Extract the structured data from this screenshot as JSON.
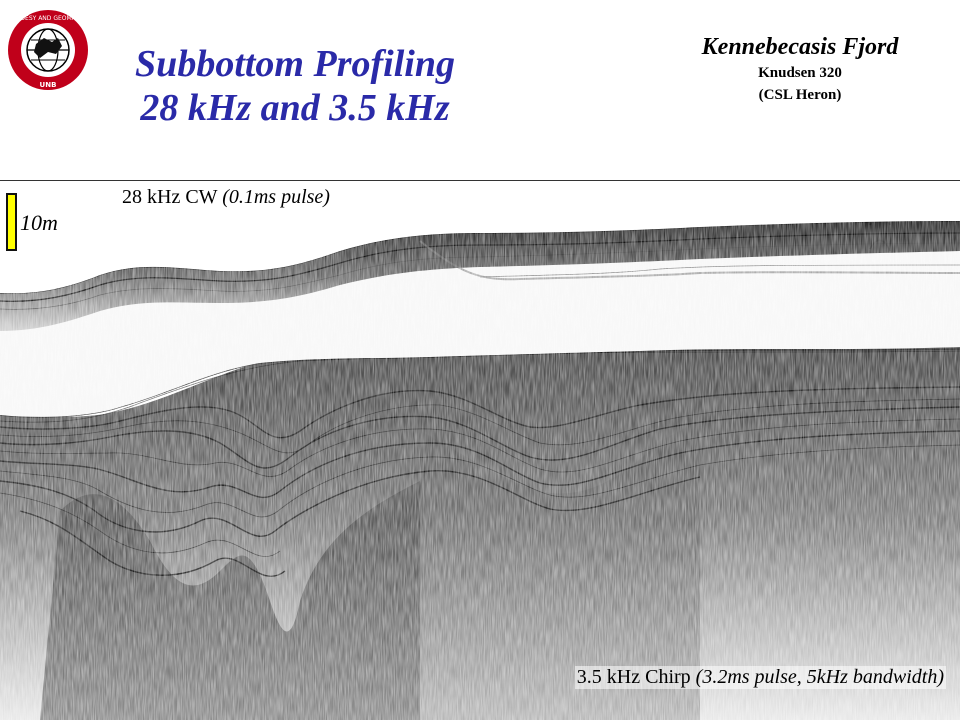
{
  "header": {
    "title_line1": "Subbottom Profiling",
    "title_line2": "28 kHz and 3.5 kHz",
    "location": "Kennebecasis Fjord",
    "instrument": "Knudsen 320",
    "vessel": "(CSL Heron)"
  },
  "logo": {
    "text": "GEODESY AND GEOMATICS ENGINEERING",
    "subtext": "UNB",
    "color": "#c0001a"
  },
  "echogram": {
    "top_label_main": "28 kHz CW",
    "top_label_detail": "(0.1ms pulse)",
    "bottom_label_main": "3.5 kHz Chirp",
    "bottom_label_detail": "(3.2ms pulse, 5kHz bandwidth)",
    "scale_label": "10m",
    "scale_color": "#ffff00"
  }
}
